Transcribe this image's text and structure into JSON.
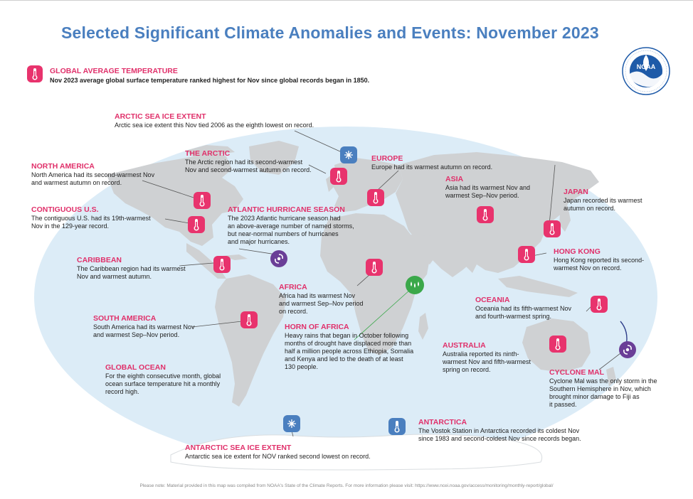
{
  "title": "Selected Significant Climate Anomalies and Events: November 2023",
  "global_average_temperature": {
    "title": "GLOBAL AVERAGE TEMPERATURE",
    "text": "Nov 2023 average global surface temperature ranked highest for Nov since global records began in 1850."
  },
  "logo": {
    "text": "NOAA",
    "ring_top": "NATIONAL OCEANIC AND ATMOSPHERIC ADMINISTRATION",
    "ring_bottom": "U.S. DEPARTMENT OF COMMERCE"
  },
  "events": [
    {
      "id": "arctic-sea-ice",
      "title": "ARCTIC SEA ICE EXTENT",
      "lines": [
        "Arctic sea ice extent this Nov tied 2006 as the eighth lowest on record."
      ],
      "icon": "ice-icon"
    },
    {
      "id": "the-arctic",
      "title": "THE ARCTIC",
      "lines": [
        "The Arctic region had its second-warmest",
        "Nov and second-warmest autumn on record."
      ],
      "icon": "thermometer-icon"
    },
    {
      "id": "europe",
      "title": "EUROPE",
      "lines": [
        "Europe had its warmest autumn on record."
      ],
      "icon": "thermometer-icon"
    },
    {
      "id": "north-america",
      "title": "NORTH AMERICA",
      "lines": [
        "North America had its second-warmest Nov",
        "and warmest autumn on record."
      ],
      "icon": "thermometer-icon"
    },
    {
      "id": "asia",
      "title": "ASIA",
      "lines": [
        "Asia had its warmest Nov and",
        "warmest Sep–Nov period."
      ],
      "icon": "thermometer-icon"
    },
    {
      "id": "japan",
      "title": "JAPAN",
      "lines": [
        "Japan recorded its warmest",
        "autumn on record."
      ],
      "icon": "thermometer-icon"
    },
    {
      "id": "contiguous-us",
      "title": "CONTIGUOUS U.S.",
      "lines": [
        "The contiguous U.S. had its 19th-warmest",
        "Nov in the 129-year record."
      ],
      "icon": "thermometer-icon"
    },
    {
      "id": "atlantic-hurricane",
      "title": "ATLANTIC HURRICANE SEASON",
      "lines": [
        "The 2023 Atlantic hurricane season had",
        "an above-average number of named storms,",
        "but near-normal numbers of hurricanes",
        "and major hurricanes."
      ],
      "icon": "hurricane-icon"
    },
    {
      "id": "hong-kong",
      "title": "HONG KONG",
      "lines": [
        "Hong Kong reported its second-",
        "warmest Nov on record."
      ],
      "icon": "thermometer-icon"
    },
    {
      "id": "caribbean",
      "title": "CARIBBEAN",
      "lines": [
        "The Caribbean region had its warmest",
        "Nov and warmest autumn."
      ],
      "icon": "thermometer-icon"
    },
    {
      "id": "africa",
      "title": "AFRICA",
      "lines": [
        "Africa had its warmest Nov",
        "and warmest Sep–Nov period",
        "on record."
      ],
      "icon": "thermometer-icon"
    },
    {
      "id": "oceania",
      "title": "OCEANIA",
      "lines": [
        "Oceania had its fifth-warmest Nov",
        "and fourth-warmest spring."
      ],
      "icon": "thermometer-icon"
    },
    {
      "id": "south-america",
      "title": "SOUTH AMERICA",
      "lines": [
        "South America had its warmest Nov",
        "and warmest Sep–Nov period."
      ],
      "icon": "thermometer-icon"
    },
    {
      "id": "horn-of-africa",
      "title": "HORN OF AFRICA",
      "lines": [
        "Heavy rains that began in October following",
        "months of drought have displaced more than",
        "half a million people across Ethiopia, Somalia",
        "and Kenya and led to the death of at least",
        "130 people."
      ],
      "icon": "rain-icon"
    },
    {
      "id": "australia",
      "title": "AUSTRALIA",
      "lines": [
        "Australia reported its ninth-",
        "warmest Nov and fifth-warmest",
        "spring on record."
      ],
      "icon": "thermometer-icon"
    },
    {
      "id": "global-ocean",
      "title": "GLOBAL OCEAN",
      "lines": [
        "For the eighth consecutive month, global",
        "ocean surface temperature hit a monthly",
        "record high."
      ],
      "icon": ""
    },
    {
      "id": "cyclone-mal",
      "title": "CYCLONE MAL",
      "lines": [
        "Cyclone Mal was the only storm in the",
        "Southern Hemisphere in Nov, which",
        "brought minor damage to Fiji as",
        "it passed."
      ],
      "icon": "hurricane-icon"
    },
    {
      "id": "antarctica",
      "title": "ANTARCTICA",
      "lines": [
        "The Vostok Station in Antarctica recorded its coldest Nov",
        "since 1983 and second-coldest Nov since records began."
      ],
      "icon": "thermometer-icon"
    },
    {
      "id": "antarctic-sea-ice",
      "title": "ANTARCTIC SEA ICE EXTENT",
      "lines": [
        "Antarctic sea ice extent for NOV ranked second lowest on record."
      ],
      "icon": "ice-icon"
    }
  ],
  "footer": "Please note: Material provided in this map was compiled from NOAA's State of the Climate Reports. For more information please visit: https://www.ncei.noaa.gov/access/monitoring/monthly-report/global/",
  "colors": {
    "title_blue": "#4a7fbf",
    "event_pink": "#e0306a",
    "ocean": "#dcecf7",
    "land": "#cfd1d3",
    "hurricane_purple": "#6a3e97",
    "rain_green": "#3aa84a"
  }
}
